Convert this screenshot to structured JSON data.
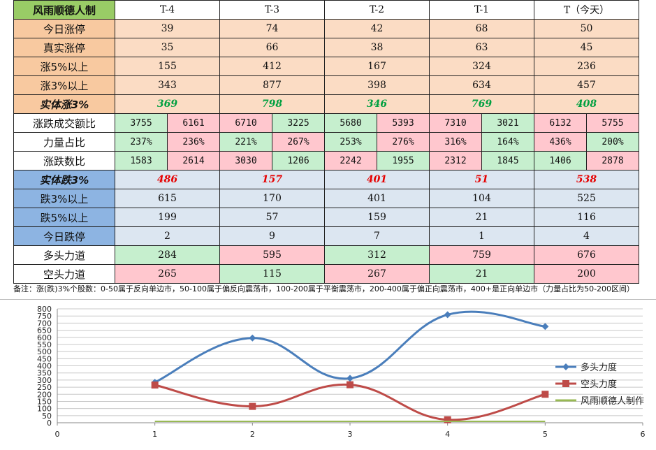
{
  "table": {
    "title": "风雨顺德人制",
    "columns": [
      "T-4",
      "T-3",
      "T-2",
      "T-1",
      "T（今天）"
    ],
    "up_rows": [
      {
        "label": "今日涨停",
        "values": [
          "39",
          "74",
          "42",
          "68",
          "50"
        ]
      },
      {
        "label": "真实涨停",
        "values": [
          "35",
          "66",
          "38",
          "63",
          "45"
        ]
      },
      {
        "label": "涨5%以上",
        "values": [
          "155",
          "412",
          "167",
          "324",
          "236"
        ]
      },
      {
        "label": "涨3%以上",
        "values": [
          "343",
          "877",
          "398",
          "634",
          "457"
        ]
      }
    ],
    "up_total": {
      "label": "实体涨3%",
      "values": [
        "369",
        "798",
        "346",
        "769",
        "408"
      ]
    },
    "pair_rows": [
      {
        "label": "涨跌成交额比",
        "cells": [
          [
            "3755",
            "6161"
          ],
          [
            "6710",
            "3225"
          ],
          [
            "5680",
            "5393"
          ],
          [
            "7310",
            "3021"
          ],
          [
            "6132",
            "5755"
          ]
        ],
        "colors": [
          [
            "g",
            "r"
          ],
          [
            "r",
            "g"
          ],
          [
            "g",
            "r"
          ],
          [
            "r",
            "g"
          ],
          [
            "r",
            "r"
          ]
        ]
      },
      {
        "label": "力量占比",
        "cells": [
          [
            "237%",
            "236%"
          ],
          [
            "221%",
            "267%"
          ],
          [
            "253%",
            "276%"
          ],
          [
            "316%",
            "164%"
          ],
          [
            "436%",
            "200%"
          ]
        ],
        "colors": [
          [
            "g",
            "r"
          ],
          [
            "g",
            "r"
          ],
          [
            "g",
            "r"
          ],
          [
            "r",
            "g"
          ],
          [
            "r",
            "g"
          ]
        ]
      },
      {
        "label": "涨跌数比",
        "cells": [
          [
            "1583",
            "2614"
          ],
          [
            "3030",
            "1206"
          ],
          [
            "2242",
            "1955"
          ],
          [
            "2312",
            "1845"
          ],
          [
            "1406",
            "2878"
          ]
        ],
        "colors": [
          [
            "g",
            "r"
          ],
          [
            "r",
            "g"
          ],
          [
            "r",
            "g"
          ],
          [
            "r",
            "g"
          ],
          [
            "g",
            "r"
          ]
        ]
      }
    ],
    "down_total": {
      "label": "实体跌3%",
      "values": [
        "486",
        "157",
        "401",
        "51",
        "538"
      ]
    },
    "down_rows": [
      {
        "label": "跌3%以上",
        "values": [
          "615",
          "170",
          "401",
          "104",
          "525"
        ]
      },
      {
        "label": "跌5%以上",
        "values": [
          "199",
          "57",
          "159",
          "21",
          "116"
        ]
      },
      {
        "label": "今日跌停",
        "values": [
          "2",
          "9",
          "7",
          "1",
          "4"
        ]
      }
    ],
    "force_rows": [
      {
        "label": "多头力道",
        "values": [
          "284",
          "595",
          "312",
          "759",
          "676"
        ],
        "colors": [
          "g",
          "r",
          "g",
          "r",
          "r"
        ]
      },
      {
        "label": "空头力道",
        "values": [
          "265",
          "115",
          "267",
          "21",
          "200"
        ],
        "colors": [
          "r",
          "g",
          "r",
          "g",
          "r"
        ]
      }
    ]
  },
  "note": "备注：涨(跌)3%个股数：0-50属于反向单边市，50-100属于偏反向震荡市，100-200属于平衡震荡市，200-400属于偏正向震荡市，400+是正向单边市（力量占比为50-200区间）",
  "chart_data": {
    "type": "line",
    "x": [
      1,
      2,
      3,
      4,
      5
    ],
    "xlim": [
      0,
      6
    ],
    "xticks": [
      0,
      1,
      2,
      3,
      4,
      5,
      6
    ],
    "ylim": [
      0,
      800
    ],
    "yticks": [
      0,
      50,
      100,
      150,
      200,
      250,
      300,
      350,
      400,
      450,
      500,
      550,
      600,
      650,
      700,
      750,
      800
    ],
    "grid": true,
    "legend_position": "right",
    "series": [
      {
        "name": "多头力度",
        "values": [
          284,
          595,
          312,
          759,
          676
        ],
        "color": "#4a7ebb",
        "marker": "diamond"
      },
      {
        "name": "空头力度",
        "values": [
          265,
          115,
          267,
          21,
          200
        ],
        "color": "#be4b48",
        "marker": "square"
      },
      {
        "name": "风雨顺德人制作",
        "values": [
          10,
          10,
          10,
          10,
          10
        ],
        "color": "#98b954",
        "marker": "none"
      }
    ]
  }
}
